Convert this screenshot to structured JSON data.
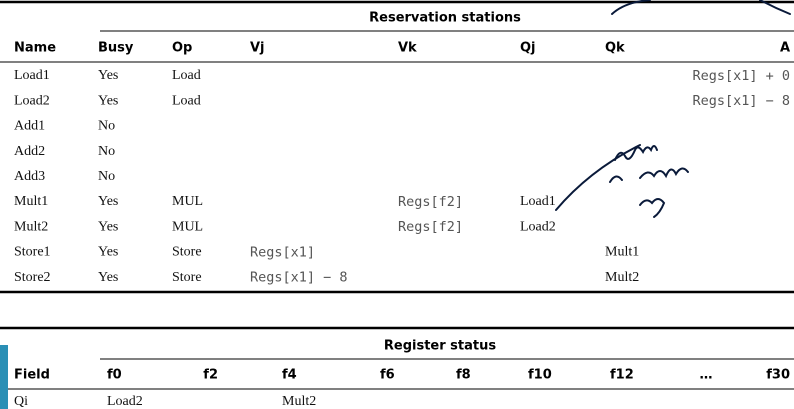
{
  "reservation_stations": {
    "title": "Reservation stations",
    "columns": [
      "Name",
      "Busy",
      "Op",
      "Vj",
      "Vk",
      "Qj",
      "Qk",
      "A"
    ],
    "rows": [
      [
        "Load1",
        "Yes",
        "Load",
        null,
        null,
        null,
        null,
        "Regs[x1] + 0"
      ],
      [
        "Load2",
        "Yes",
        "Load",
        null,
        null,
        null,
        null,
        "Regs[x1] − 8"
      ],
      [
        "Add1",
        "No",
        null,
        null,
        null,
        null,
        null,
        null
      ],
      [
        "Add2",
        "No",
        null,
        null,
        null,
        null,
        null,
        null
      ],
      [
        "Add3",
        "No",
        null,
        null,
        null,
        null,
        null,
        null
      ],
      [
        "Mult1",
        "Yes",
        "MUL",
        null,
        "Regs[f2]",
        "Load1",
        null,
        null
      ],
      [
        "Mult2",
        "Yes",
        "MUL",
        null,
        "Regs[f2]",
        "Load2",
        null,
        null
      ],
      [
        "Store1",
        "Yes",
        "Store",
        "Regs[x1]",
        null,
        null,
        "Mult1",
        null
      ],
      [
        "Store2",
        "Yes",
        "Store",
        "Regs[x1] − 8",
        null,
        null,
        "Mult2",
        null
      ]
    ]
  },
  "register_status": {
    "title": "Register status",
    "columns": [
      "Field",
      "f0",
      "f2",
      "f4",
      "f6",
      "f8",
      "f10",
      "f12",
      "…",
      "f30"
    ],
    "rows": [
      [
        "Qi",
        "Load2",
        null,
        "Mult2",
        null,
        null,
        null,
        null,
        null,
        null
      ]
    ]
  }
}
